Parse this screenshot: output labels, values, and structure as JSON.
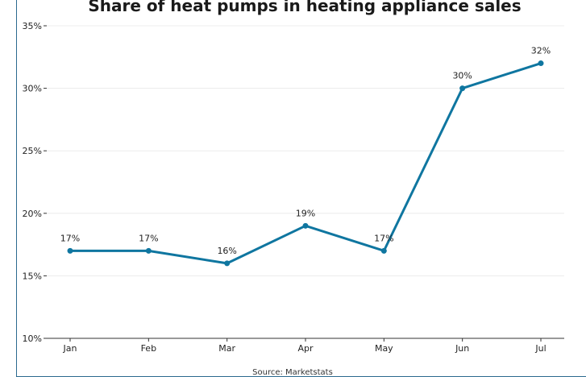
{
  "chart_data": {
    "type": "line",
    "title": "Share of heat pumps in heating appliance sales",
    "categories": [
      "Jan",
      "Feb",
      "Mar",
      "Apr",
      "May",
      "Jun",
      "Jul"
    ],
    "series": [
      {
        "values": [
          17,
          17,
          16,
          19,
          17,
          30,
          32
        ],
        "data_labels": [
          "17%",
          "17%",
          "16%",
          "19%",
          "17%",
          "30%",
          "32%"
        ]
      }
    ],
    "yticks": [
      10,
      15,
      20,
      25,
      30,
      35
    ],
    "ytick_labels": [
      "10%",
      "15%",
      "20%",
      "25%",
      "30%",
      "35%"
    ],
    "ylim": [
      10,
      35
    ],
    "grid": true,
    "source": "Source: Marketstats",
    "colors": {
      "line": "#0f76a0",
      "grid": "#ececec",
      "axis": "#333333"
    }
  }
}
